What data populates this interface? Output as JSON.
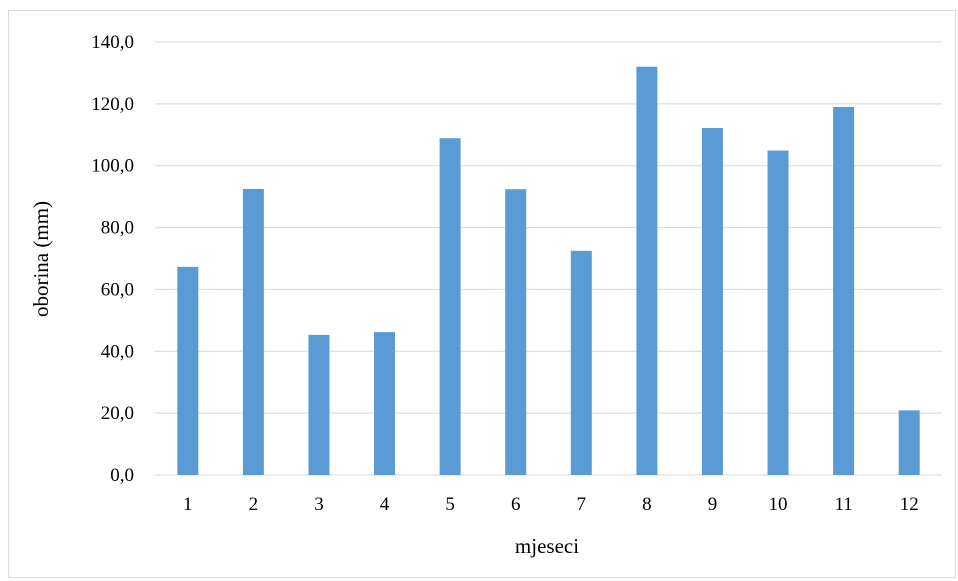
{
  "chart_data": {
    "type": "bar",
    "title": "",
    "xlabel": "mjeseci",
    "ylabel": "oborina (mm)",
    "categories": [
      "1",
      "2",
      "3",
      "4",
      "5",
      "6",
      "7",
      "8",
      "9",
      "10",
      "11",
      "12"
    ],
    "values": [
      67.3,
      92.5,
      45.3,
      46.2,
      108.9,
      92.4,
      72.5,
      132.0,
      112.2,
      104.9,
      119.0,
      20.9
    ],
    "ylim": [
      0,
      140
    ],
    "yticks": [
      0,
      20,
      40,
      60,
      80,
      100,
      120,
      140
    ],
    "ytick_labels": [
      "0,0",
      "20,0",
      "40,0",
      "60,0",
      "80,0",
      "100,0",
      "120,0",
      "140,0"
    ],
    "grid": true,
    "bar_color": "#5b9bd5",
    "grid_color": "#d9d9d9",
    "legend": "none"
  }
}
